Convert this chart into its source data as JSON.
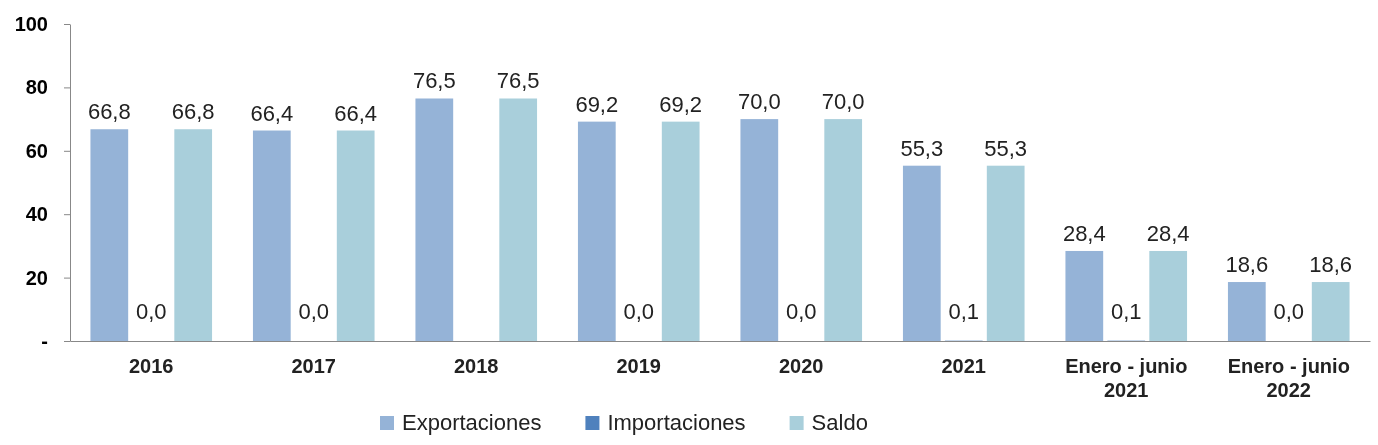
{
  "chart_data": {
    "type": "bar",
    "categories": [
      "2016",
      "2017",
      "2018",
      "2019",
      "2020",
      "2021",
      "Enero - junio\n2021",
      "Enero - junio\n2022"
    ],
    "series": [
      {
        "name": "Exportaciones",
        "color": "#95b3d7",
        "values": [
          66.8,
          66.4,
          76.5,
          69.2,
          70.0,
          55.3,
          28.4,
          18.6
        ],
        "value_labels": [
          "66,8",
          "66,4",
          "76,5",
          "69,2",
          "70,0",
          "55,3",
          "28,4",
          "18,6"
        ]
      },
      {
        "name": "Importaciones",
        "color": "#4f81bd",
        "values": [
          0,
          0,
          0,
          0,
          0,
          0.1,
          0.1,
          0
        ],
        "value_labels": [
          "0,0",
          "0,0",
          null,
          "0,0",
          "0,0",
          "0,1",
          "0,1",
          "0,0"
        ]
      },
      {
        "name": "Saldo",
        "color": "#a9cfdb",
        "values": [
          66.8,
          66.4,
          76.5,
          69.2,
          70.0,
          55.3,
          28.4,
          18.6
        ],
        "value_labels": [
          "66,8",
          "66,4",
          "76,5",
          "69,2",
          "70,0",
          "55,3",
          "28,4",
          "18,6"
        ]
      }
    ],
    "ylim": [
      0,
      100
    ],
    "yticks": [
      {
        "value": 0,
        "label": "-"
      },
      20,
      40,
      60,
      80,
      100
    ],
    "grid": false,
    "legend": "bottom"
  }
}
